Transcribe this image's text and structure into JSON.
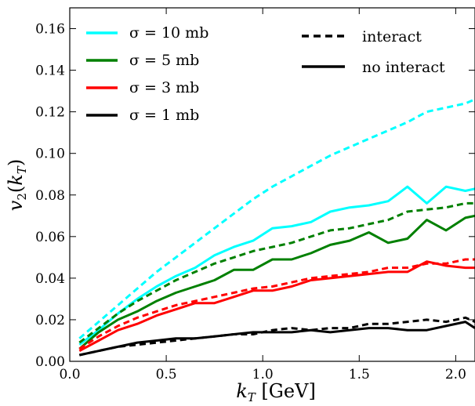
{
  "chart_data": {
    "type": "line",
    "xlabel_main": "k",
    "xlabel_sub": "T",
    "xlabel_unit": " [GeV]",
    "ylabel_main": "v",
    "ylabel_sub1": "2",
    "ylabel_sub2": "T",
    "xlim": [
      0.0,
      2.1
    ],
    "ylim": [
      0.0,
      0.17
    ],
    "xticks": [
      0.0,
      0.5,
      1.0,
      1.5,
      2.0
    ],
    "xtick_labels": [
      "0.0",
      "0.5",
      "1.0",
      "1.5",
      "2.0"
    ],
    "yticks": [
      0.0,
      0.02,
      0.04,
      0.06,
      0.08,
      0.1,
      0.12,
      0.14,
      0.16
    ],
    "ytick_labels": [
      "0.00",
      "0.02",
      "0.04",
      "0.06",
      "0.08",
      "0.10",
      "0.12",
      "0.14",
      "0.16"
    ],
    "grid": false,
    "legend_colors": {
      "entries": [
        {
          "label": "σ = 10 mb",
          "color": "#00ffff"
        },
        {
          "label": "σ = 5 mb",
          "color": "#008000"
        },
        {
          "label": "σ = 3 mb",
          "color": "#ff0000"
        },
        {
          "label": "σ = 1 mb",
          "color": "#000000"
        }
      ],
      "placement": "top-left"
    },
    "legend_styles": {
      "entries": [
        {
          "label": "interact",
          "style": "dashed"
        },
        {
          "label": "no interact",
          "style": "solid"
        }
      ],
      "placement": "top-right"
    },
    "series": [
      {
        "sigma_mb": 10,
        "style": "dashed",
        "color": "#00ffff",
        "x": [
          0.05,
          0.15,
          0.25,
          0.35,
          0.45,
          0.55,
          0.65,
          0.75,
          0.85,
          0.95,
          1.05,
          1.15,
          1.25,
          1.35,
          1.45,
          1.55,
          1.65,
          1.75,
          1.85,
          1.95,
          2.05,
          2.1
        ],
        "y": [
          0.011,
          0.019,
          0.027,
          0.035,
          0.043,
          0.05,
          0.057,
          0.064,
          0.071,
          0.078,
          0.084,
          0.089,
          0.094,
          0.099,
          0.103,
          0.107,
          0.111,
          0.115,
          0.12,
          0.122,
          0.124,
          0.126
        ]
      },
      {
        "sigma_mb": 10,
        "style": "solid",
        "color": "#00ffff",
        "x": [
          0.05,
          0.15,
          0.25,
          0.35,
          0.45,
          0.55,
          0.65,
          0.75,
          0.85,
          0.95,
          1.05,
          1.15,
          1.25,
          1.35,
          1.45,
          1.55,
          1.65,
          1.75,
          1.85,
          1.95,
          2.05,
          2.1
        ],
        "y": [
          0.008,
          0.015,
          0.023,
          0.03,
          0.036,
          0.041,
          0.045,
          0.051,
          0.055,
          0.058,
          0.064,
          0.065,
          0.067,
          0.072,
          0.074,
          0.075,
          0.077,
          0.084,
          0.076,
          0.084,
          0.082,
          0.083
        ]
      },
      {
        "sigma_mb": 5,
        "style": "dashed",
        "color": "#008000",
        "x": [
          0.05,
          0.15,
          0.25,
          0.35,
          0.45,
          0.55,
          0.65,
          0.75,
          0.85,
          0.95,
          1.05,
          1.15,
          1.25,
          1.35,
          1.45,
          1.55,
          1.65,
          1.75,
          1.85,
          1.95,
          2.05,
          2.1
        ],
        "y": [
          0.009,
          0.016,
          0.023,
          0.029,
          0.034,
          0.039,
          0.043,
          0.047,
          0.05,
          0.053,
          0.055,
          0.057,
          0.06,
          0.063,
          0.064,
          0.066,
          0.068,
          0.072,
          0.073,
          0.074,
          0.076,
          0.076
        ]
      },
      {
        "sigma_mb": 5,
        "style": "solid",
        "color": "#008000",
        "x": [
          0.05,
          0.15,
          0.25,
          0.35,
          0.45,
          0.55,
          0.65,
          0.75,
          0.85,
          0.95,
          1.05,
          1.15,
          1.25,
          1.35,
          1.45,
          1.55,
          1.65,
          1.75,
          1.85,
          1.95,
          2.05,
          2.1
        ],
        "y": [
          0.006,
          0.014,
          0.02,
          0.024,
          0.029,
          0.033,
          0.036,
          0.039,
          0.044,
          0.044,
          0.049,
          0.049,
          0.052,
          0.056,
          0.058,
          0.062,
          0.057,
          0.059,
          0.068,
          0.063,
          0.069,
          0.07
        ]
      },
      {
        "sigma_mb": 3,
        "style": "dashed",
        "color": "#ff0000",
        "x": [
          0.05,
          0.15,
          0.25,
          0.35,
          0.45,
          0.55,
          0.65,
          0.75,
          0.85,
          0.95,
          1.05,
          1.15,
          1.25,
          1.35,
          1.45,
          1.55,
          1.65,
          1.75,
          1.85,
          1.95,
          2.05,
          2.1
        ],
        "y": [
          0.006,
          0.012,
          0.017,
          0.021,
          0.024,
          0.027,
          0.029,
          0.031,
          0.033,
          0.035,
          0.036,
          0.038,
          0.04,
          0.041,
          0.042,
          0.043,
          0.045,
          0.045,
          0.047,
          0.047,
          0.049,
          0.049
        ]
      },
      {
        "sigma_mb": 3,
        "style": "solid",
        "color": "#ff0000",
        "x": [
          0.05,
          0.15,
          0.25,
          0.35,
          0.45,
          0.55,
          0.65,
          0.75,
          0.85,
          0.95,
          1.05,
          1.15,
          1.25,
          1.35,
          1.45,
          1.55,
          1.65,
          1.75,
          1.85,
          1.95,
          2.05,
          2.1
        ],
        "y": [
          0.005,
          0.01,
          0.015,
          0.018,
          0.022,
          0.025,
          0.028,
          0.028,
          0.031,
          0.034,
          0.034,
          0.036,
          0.039,
          0.04,
          0.041,
          0.042,
          0.043,
          0.043,
          0.048,
          0.046,
          0.045,
          0.045
        ]
      },
      {
        "sigma_mb": 1,
        "style": "dashed",
        "color": "#000000",
        "x": [
          0.05,
          0.15,
          0.25,
          0.35,
          0.45,
          0.55,
          0.65,
          0.75,
          0.85,
          0.95,
          1.05,
          1.15,
          1.25,
          1.35,
          1.45,
          1.55,
          1.65,
          1.75,
          1.85,
          1.95,
          2.05,
          2.1
        ],
        "y": [
          0.003,
          0.005,
          0.007,
          0.008,
          0.009,
          0.01,
          0.011,
          0.012,
          0.013,
          0.013,
          0.015,
          0.016,
          0.015,
          0.016,
          0.016,
          0.018,
          0.018,
          0.019,
          0.02,
          0.019,
          0.021,
          0.019
        ]
      },
      {
        "sigma_mb": 1,
        "style": "solid",
        "color": "#000000",
        "x": [
          0.05,
          0.15,
          0.25,
          0.35,
          0.45,
          0.55,
          0.65,
          0.75,
          0.85,
          0.95,
          1.05,
          1.15,
          1.25,
          1.35,
          1.45,
          1.55,
          1.65,
          1.75,
          1.85,
          1.95,
          2.05,
          2.1
        ],
        "y": [
          0.003,
          0.005,
          0.007,
          0.009,
          0.01,
          0.011,
          0.011,
          0.012,
          0.013,
          0.014,
          0.014,
          0.014,
          0.015,
          0.014,
          0.015,
          0.016,
          0.016,
          0.015,
          0.015,
          0.017,
          0.019,
          0.016
        ]
      }
    ]
  }
}
